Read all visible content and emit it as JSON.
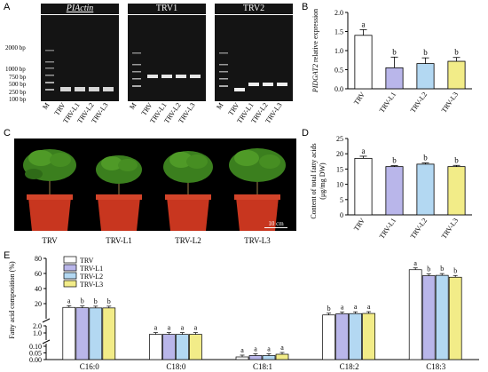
{
  "panels": {
    "a": "A",
    "b": "B",
    "c": "C",
    "d": "D",
    "e": "E"
  },
  "gels": [
    {
      "title": "PIActin",
      "italic": true
    },
    {
      "title": "TRV1",
      "italic": false
    },
    {
      "title": "TRV2",
      "italic": false
    }
  ],
  "ladder_labels": [
    "2000 bp",
    "1000 bp",
    "750 bp",
    "500 bp",
    "250 bp",
    "100 bp"
  ],
  "gel_lanes": [
    "M",
    "TRV",
    "TRV-L1",
    "TRV-L2",
    "TRV-L3"
  ],
  "plants": {
    "labels": [
      "TRV",
      "TRV-L1",
      "TRV-L2",
      "TRV-L3"
    ],
    "scale": "10 cm"
  },
  "colors": {
    "TRV": "#ffffff",
    "TRV-L1": "#b9b6ea",
    "TRV-L2": "#b3d8f2",
    "TRV-L3": "#f2ec88"
  },
  "chart_data": [
    {
      "type": "bar",
      "panel": "B",
      "ylabel": "PIDGAT2 relative expression",
      "categories": [
        "TRV",
        "TRV-L1",
        "TRV-L2",
        "TRV-L3"
      ],
      "values": [
        1.4,
        0.55,
        0.66,
        0.72
      ],
      "errors": [
        0.15,
        0.28,
        0.15,
        0.1
      ],
      "letters": [
        "a",
        "b",
        "b",
        "b"
      ],
      "ylim": [
        0,
        2.0
      ],
      "yticks": [
        "0.0",
        "0.5",
        "1.0",
        "1.5",
        "2.0"
      ]
    },
    {
      "type": "bar",
      "panel": "D",
      "ylabel": "Content of total fatty acids (μg/mg DW)",
      "categories": [
        "TRV",
        "TRV-L1",
        "TRV-L2",
        "TRV-L3"
      ],
      "values": [
        18.5,
        15.8,
        16.6,
        15.8
      ],
      "errors": [
        0.7,
        0.3,
        0.4,
        0.4
      ],
      "letters": [
        "a",
        "b",
        "b",
        "b"
      ],
      "ylim": [
        0,
        25
      ],
      "yticks": [
        "0",
        "5",
        "10",
        "15",
        "20",
        "25"
      ]
    },
    {
      "type": "bar",
      "panel": "E",
      "ylabel": "Fatty acid composition (%)",
      "categories": [
        "C16:0",
        "C18:0",
        "C18:1",
        "C18:2",
        "C18:3"
      ],
      "series": [
        {
          "name": "TRV",
          "values": [
            15.0,
            0.8,
            0.02,
            5.0,
            65.0
          ],
          "letters": [
            "a",
            "a",
            "a",
            "b",
            "a"
          ]
        },
        {
          "name": "TRV-L1",
          "values": [
            14.5,
            0.8,
            0.03,
            6.5,
            57.0
          ],
          "letters": [
            "b",
            "a",
            "a",
            "a",
            "b"
          ]
        },
        {
          "name": "TRV-L2",
          "values": [
            14.3,
            0.8,
            0.03,
            6.8,
            57.5
          ],
          "letters": [
            "b",
            "a",
            "a",
            "a",
            "b"
          ]
        },
        {
          "name": "TRV-L3",
          "values": [
            14.3,
            0.8,
            0.04,
            7.0,
            55.0
          ],
          "letters": [
            "b",
            "a",
            "a",
            "a",
            "b"
          ]
        }
      ],
      "yticks_upper": [
        "20",
        "40",
        "60",
        "80"
      ],
      "yticks_mid": [
        "1.0",
        "2.0"
      ],
      "yticks_lower": [
        "0.00",
        "0.05",
        "0.10"
      ]
    }
  ]
}
